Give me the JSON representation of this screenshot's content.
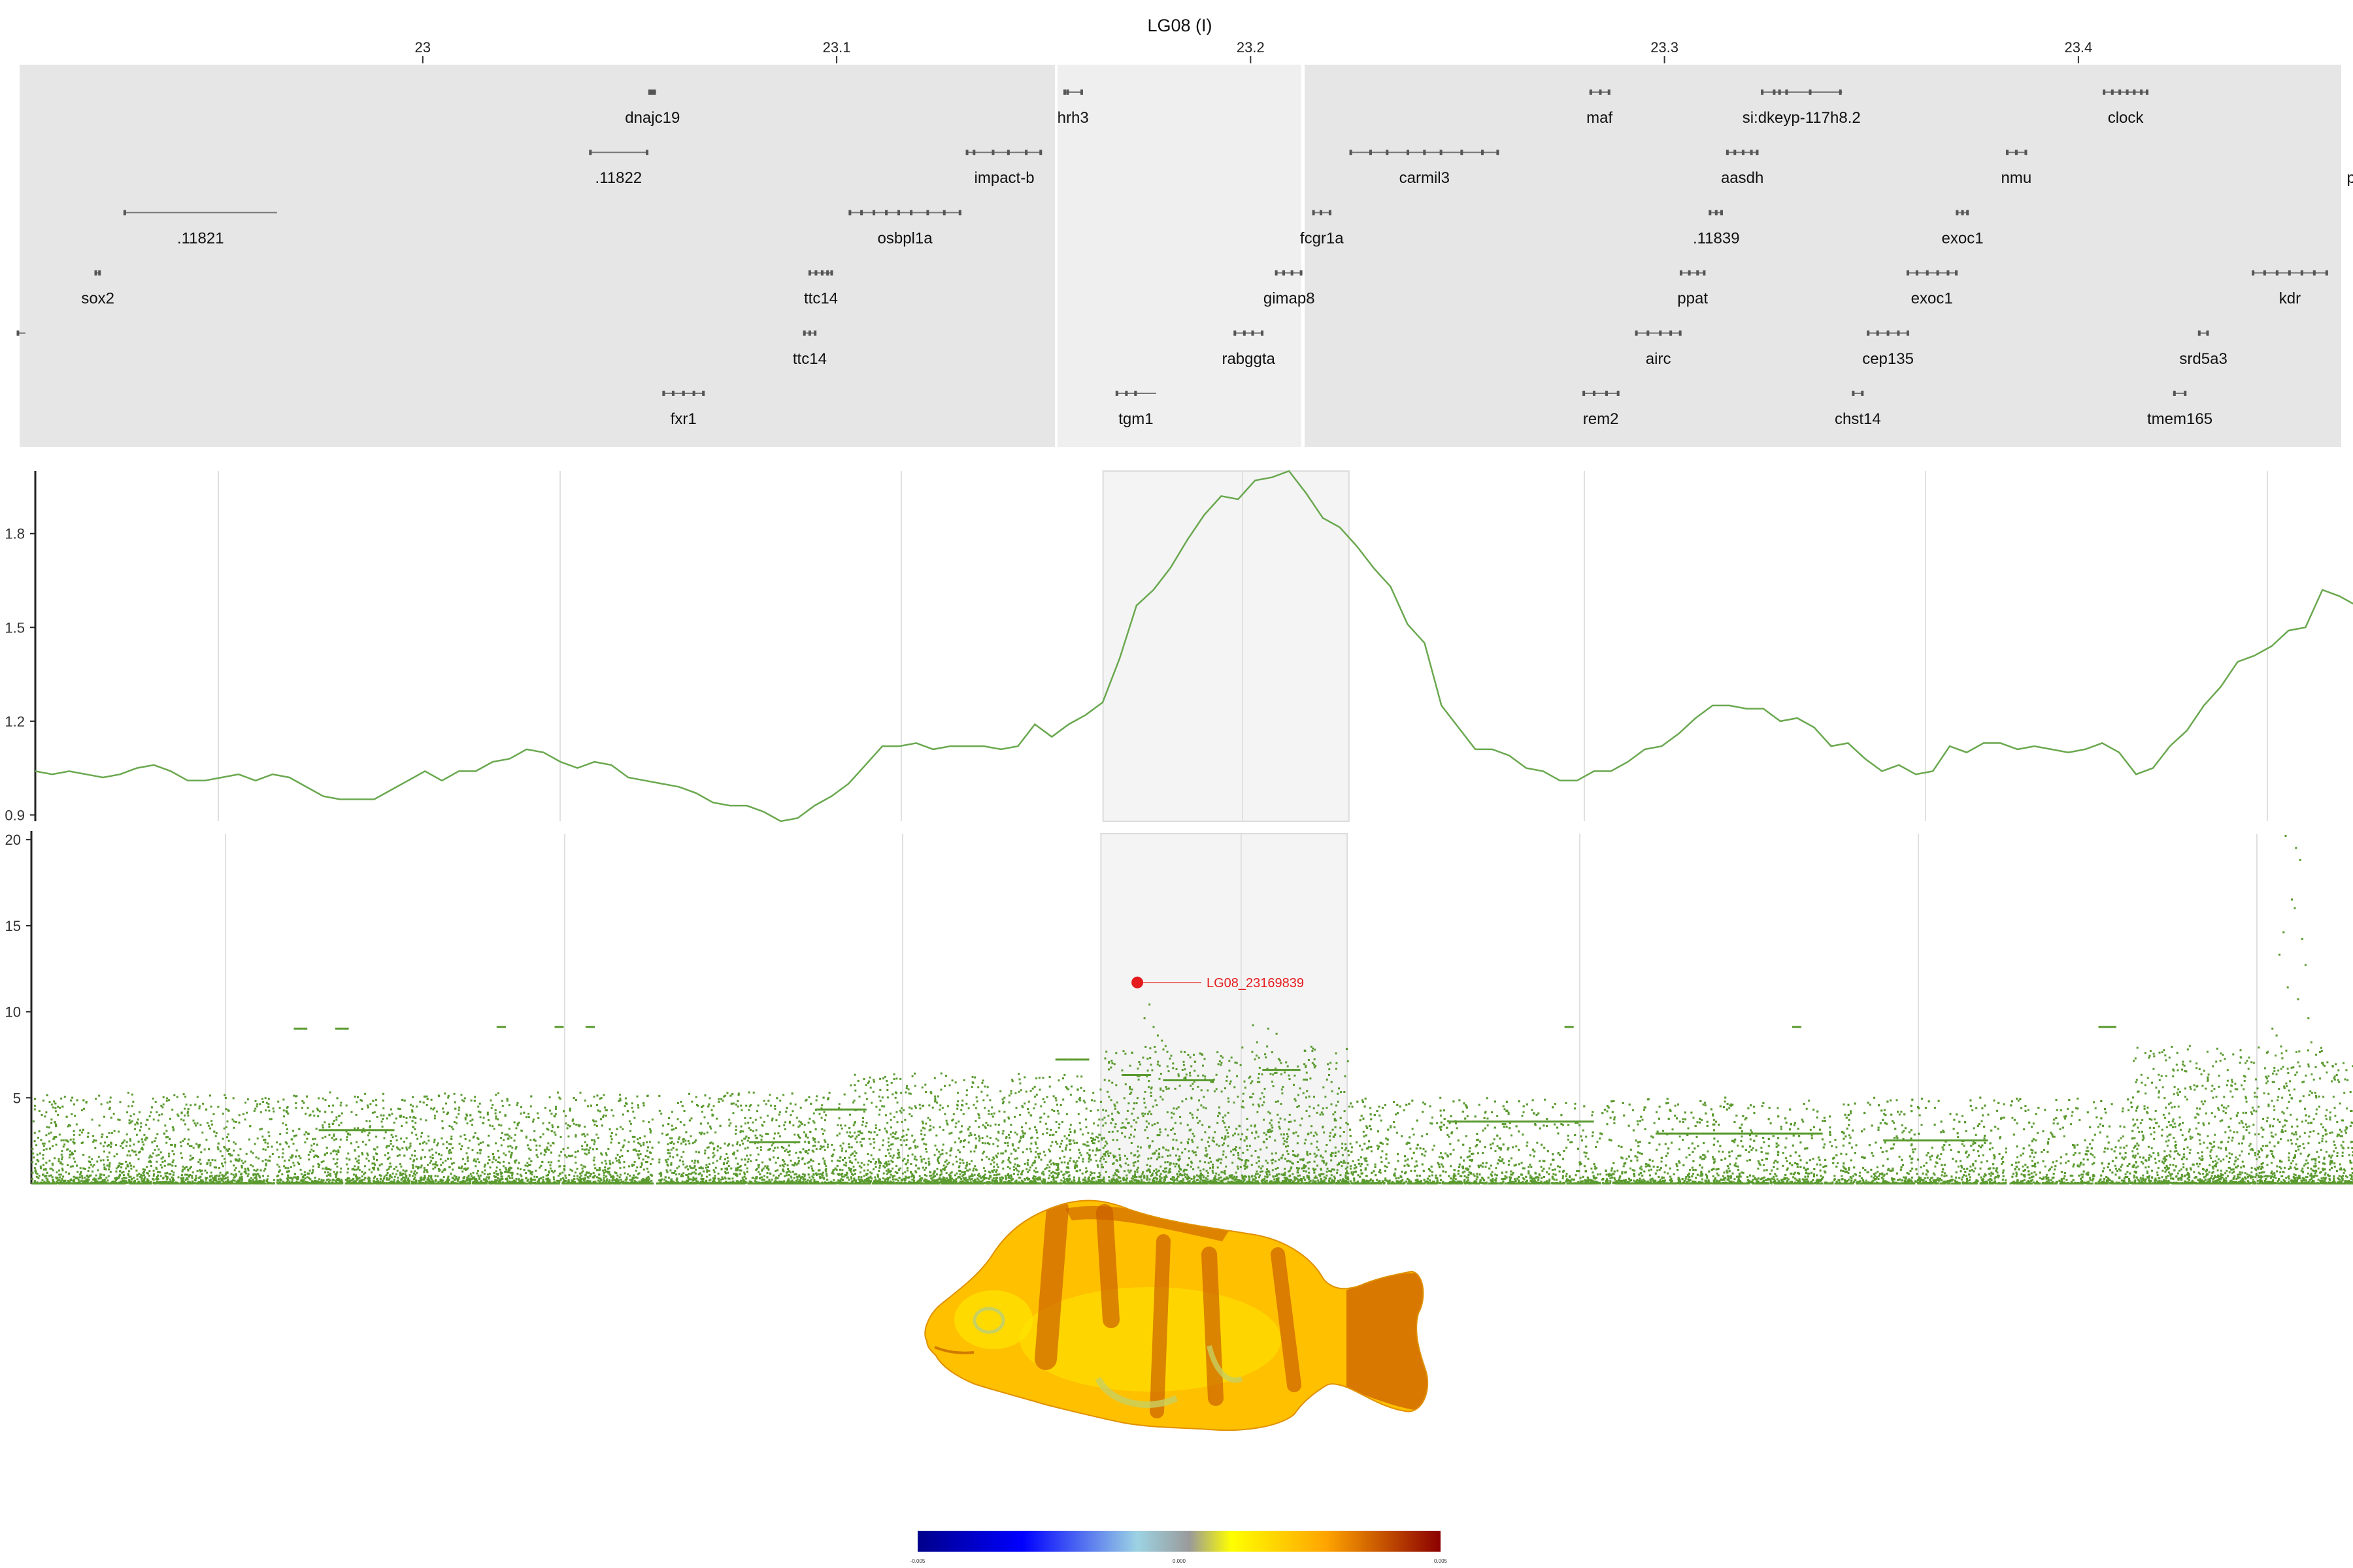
{
  "chart_data": [
    {
      "type": "gene-track",
      "title": "LG08 (I)",
      "x_ticks": [
        23,
        23.1,
        23.2,
        23.3,
        23.4
      ],
      "xlim": [
        22.9026,
        23.4635
      ],
      "highlight_range": [
        23.161,
        23.2205
      ],
      "genes": [
        {
          "name": "dnajc19",
          "row": 0,
          "start": 23.0546,
          "end": 23.0564,
          "label_at": 23.0555,
          "exons": [
            23.0548,
            23.0552,
            23.0556,
            23.056
          ]
        },
        {
          "name": "hrh3",
          "row": 0,
          "start": 23.1549,
          "end": 23.1593,
          "label_at": 23.1571,
          "exons": [
            23.1551,
            23.1558,
            23.1592
          ]
        },
        {
          "name": "maf",
          "row": 0,
          "start": 23.2818,
          "end": 23.2868,
          "label_at": 23.2843,
          "exons": [
            23.2822,
            23.2845,
            23.2866
          ]
        },
        {
          "name": "si:dkeyp-117h8.2",
          "row": 0,
          "start": 23.3234,
          "end": 23.3429,
          "label_at": 23.3331,
          "exons": [
            23.3236,
            23.3265,
            23.3278,
            23.3295,
            23.3352,
            23.3425
          ]
        },
        {
          "name": "clock",
          "row": 0,
          "start": 23.4059,
          "end": 23.4169,
          "label_at": 23.4114,
          "exons": [
            23.4062,
            23.4082,
            23.41,
            23.4118,
            23.4135,
            23.4152,
            23.4166
          ]
        },
        {
          "name": ".11822",
          "row": 1,
          "start": 23.0403,
          "end": 23.0544,
          "label_at": 23.0473,
          "exons": [
            23.0405,
            23.0542
          ]
        },
        {
          "name": "impact-b",
          "row": 1,
          "start": 23.1313,
          "end": 23.1496,
          "label_at": 23.1405,
          "exons": [
            23.1315,
            23.1332,
            23.1378,
            23.1415,
            23.1458,
            23.1493
          ]
        },
        {
          "name": "carmil3",
          "row": 1,
          "start": 23.224,
          "end": 23.26,
          "label_at": 23.242,
          "exons": [
            23.2242,
            23.229,
            23.233,
            23.238,
            23.242,
            23.246,
            23.251,
            23.256,
            23.2597
          ]
        },
        {
          "name": "aasdh",
          "row": 1,
          "start": 23.315,
          "end": 23.3226,
          "label_at": 23.3188,
          "exons": [
            23.3152,
            23.317,
            23.319,
            23.321,
            23.3224
          ]
        },
        {
          "name": "nmu",
          "row": 1,
          "start": 23.3826,
          "end": 23.3875,
          "label_at": 23.385,
          "exons": [
            23.3828,
            23.385,
            23.3873
          ]
        },
        {
          "name": "pdg",
          "row": 1,
          "start": 23.47,
          "end": 23.48,
          "label_at": 23.468,
          "exons": []
        },
        {
          "name": ".11821",
          "row": 2,
          "start": 22.9278,
          "end": 22.9648,
          "label_at": 22.9463,
          "exons": [
            22.928
          ]
        },
        {
          "name": "osbpl1a",
          "row": 2,
          "start": 23.103,
          "end": 23.13,
          "label_at": 23.1165,
          "exons": [
            23.1032,
            23.106,
            23.109,
            23.112,
            23.115,
            23.118,
            23.122,
            23.126,
            23.1298
          ]
        },
        {
          "name": "fcgr1a",
          "row": 2,
          "start": 23.215,
          "end": 23.2195,
          "label_at": 23.2172,
          "exons": [
            23.2152,
            23.217,
            23.2192
          ]
        },
        {
          "name": ".11839",
          "row": 2,
          "start": 23.3109,
          "end": 23.314,
          "label_at": 23.3125,
          "exons": [
            23.311,
            23.3125,
            23.3138
          ]
        },
        {
          "name": "exoc1",
          "row": 2,
          "start": 23.3705,
          "end": 23.3734,
          "label_at": 23.372,
          "exons": [
            23.3707,
            23.372,
            23.3732
          ]
        },
        {
          "name": "sox2",
          "row": 3,
          "start": 22.9208,
          "end": 22.9221,
          "label_at": 22.9215,
          "exons": [
            22.921,
            22.9219
          ]
        },
        {
          "name": "ttc14",
          "row": 3,
          "start": 23.0933,
          "end": 23.099,
          "label_at": 23.0962,
          "exons": [
            23.0935,
            23.095,
            23.0965,
            23.0978,
            23.0988
          ]
        },
        {
          "name": "gimap8",
          "row": 3,
          "start": 23.206,
          "end": 23.2125,
          "label_at": 23.2093,
          "exons": [
            23.2062,
            23.208,
            23.21,
            23.2122
          ]
        },
        {
          "name": "ppat",
          "row": 3,
          "start": 23.3038,
          "end": 23.3098,
          "label_at": 23.3068,
          "exons": [
            23.304,
            23.306,
            23.308,
            23.3096
          ]
        },
        {
          "name": "exoc1",
          "row": 3,
          "start": 23.3586,
          "end": 23.3707,
          "label_at": 23.3646,
          "exons": [
            23.3588,
            23.361,
            23.3635,
            23.366,
            23.3685,
            23.3705
          ]
        },
        {
          "name": "kdr",
          "row": 3,
          "start": 23.442,
          "end": 23.4603,
          "label_at": 23.4511,
          "exons": [
            23.4422,
            23.445,
            23.448,
            23.451,
            23.454,
            23.457,
            23.46
          ]
        },
        {
          "name": "",
          "row": 4,
          "start": 22.902,
          "end": 22.904,
          "label_at": 22.903,
          "exons": [
            22.9022
          ]
        },
        {
          "name": "ttc14",
          "row": 4,
          "start": 23.092,
          "end": 23.095,
          "label_at": 23.0935,
          "exons": [
            23.0922,
            23.0935,
            23.0948
          ]
        },
        {
          "name": "rabggta",
          "row": 4,
          "start": 23.196,
          "end": 23.203,
          "label_at": 23.1995,
          "exons": [
            23.1962,
            23.1985,
            23.2005,
            23.2028
          ]
        },
        {
          "name": "airc",
          "row": 4,
          "start": 23.293,
          "end": 23.304,
          "label_at": 23.2985,
          "exons": [
            23.2932,
            23.296,
            23.299,
            23.3015,
            23.3038
          ]
        },
        {
          "name": "cep135",
          "row": 4,
          "start": 23.349,
          "end": 23.359,
          "label_at": 23.354,
          "exons": [
            23.3492,
            23.3515,
            23.354,
            23.3565,
            23.3588
          ]
        },
        {
          "name": "srd5a3",
          "row": 4,
          "start": 23.429,
          "end": 23.4314,
          "label_at": 23.4302,
          "exons": [
            23.4292,
            23.4312
          ]
        },
        {
          "name": "fxr1",
          "row": 5,
          "start": 23.058,
          "end": 23.068,
          "label_at": 23.063,
          "exons": [
            23.0582,
            23.0605,
            23.063,
            23.0655,
            23.0678
          ]
        },
        {
          "name": "tgm1",
          "row": 5,
          "start": 23.1675,
          "end": 23.1772,
          "label_at": 23.1723,
          "exons": [
            23.1677,
            23.17,
            23.1722
          ]
        },
        {
          "name": "rem2",
          "row": 5,
          "start": 23.2803,
          "end": 23.289,
          "label_at": 23.2846,
          "exons": [
            23.2805,
            23.283,
            23.286,
            23.2888
          ]
        },
        {
          "name": "chst14",
          "row": 5,
          "start": 23.3454,
          "end": 23.348,
          "label_at": 23.3467,
          "exons": [
            23.3456,
            23.3478
          ]
        },
        {
          "name": "tmem165",
          "row": 5,
          "start": 23.423,
          "end": 23.426,
          "label_at": 23.4245,
          "exons": [
            23.4232,
            23.4258
          ]
        }
      ]
    },
    {
      "type": "line",
      "x_start": 22.9026,
      "x_step": 0.0041,
      "yticks": [
        0.9,
        1.2,
        1.5,
        1.8
      ],
      "ylim": [
        0.88,
        2.0
      ],
      "color": "#6aa84f",
      "highlight_range": [
        23.161,
        23.2205
      ],
      "y": [
        1.04,
        1.03,
        1.04,
        1.03,
        1.02,
        1.03,
        1.05,
        1.06,
        1.04,
        1.01,
        1.01,
        1.02,
        1.03,
        1.01,
        1.03,
        1.02,
        0.99,
        0.96,
        0.95,
        0.95,
        0.95,
        0.98,
        1.01,
        1.04,
        1.01,
        1.04,
        1.04,
        1.07,
        1.08,
        1.11,
        1.1,
        1.07,
        1.05,
        1.07,
        1.06,
        1.02,
        1.01,
        1.0,
        0.99,
        0.97,
        0.94,
        0.93,
        0.93,
        0.91,
        0.88,
        0.89,
        0.93,
        0.96,
        1.0,
        1.06,
        1.12,
        1.12,
        1.13,
        1.11,
        1.12,
        1.12,
        1.12,
        1.11,
        1.12,
        1.19,
        1.15,
        1.19,
        1.22,
        1.26,
        1.4,
        1.57,
        1.62,
        1.69,
        1.78,
        1.86,
        1.92,
        1.91,
        1.97,
        1.98,
        2.0,
        1.93,
        1.85,
        1.82,
        1.76,
        1.69,
        1.63,
        1.51,
        1.45,
        1.25,
        1.18,
        1.11,
        1.11,
        1.09,
        1.05,
        1.04,
        1.01,
        1.01,
        1.04,
        1.04,
        1.07,
        1.11,
        1.12,
        1.16,
        1.21,
        1.25,
        1.25,
        1.24,
        1.24,
        1.2,
        1.21,
        1.18,
        1.12,
        1.13,
        1.08,
        1.04,
        1.06,
        1.03,
        1.04,
        1.12,
        1.1,
        1.13,
        1.13,
        1.11,
        1.12,
        1.11,
        1.1,
        1.11,
        1.13,
        1.1,
        1.03,
        1.05,
        1.12,
        1.17,
        1.25,
        1.31,
        1.39,
        1.41,
        1.44,
        1.49,
        1.5,
        1.62,
        1.6,
        1.57,
        1.73,
        1.74,
        1.75,
        1.71,
        1.69,
        1.71,
        1.69,
        1.61,
        1.45
      ]
    },
    {
      "type": "scatter",
      "description_ref": "manhattan",
      "yticks": [
        5,
        10,
        15,
        20
      ],
      "ylim": [
        0,
        20.5
      ],
      "color": "#5a9a2f",
      "highlight_range": [
        23.161,
        23.2205
      ],
      "top_snp": {
        "label": "LG08_23169839",
        "x": 23.1698,
        "y": 11.7,
        "color": "#e41a1c"
      },
      "top_region_points": [
        {
          "x": 23.447,
          "y": 20.2
        },
        {
          "x": 23.4495,
          "y": 19.5
        },
        {
          "x": 23.4505,
          "y": 18.8
        },
        {
          "x": 23.4485,
          "y": 16.5
        },
        {
          "x": 23.4492,
          "y": 16.0
        },
        {
          "x": 23.4465,
          "y": 14.6
        },
        {
          "x": 23.451,
          "y": 14.2
        },
        {
          "x": 23.4455,
          "y": 13.3
        },
        {
          "x": 23.4518,
          "y": 12.7
        },
        {
          "x": 23.4475,
          "y": 11.4
        },
        {
          "x": 23.45,
          "y": 10.7
        },
        {
          "x": 23.4525,
          "y": 9.6
        },
        {
          "x": 23.4438,
          "y": 9.0
        },
        {
          "x": 23.4448,
          "y": 8.6
        },
        {
          "x": 23.4532,
          "y": 8.2
        },
        {
          "x": 23.4425,
          "y": 7.6
        },
        {
          "x": 23.1725,
          "y": 10.4
        },
        {
          "x": 23.1713,
          "y": 9.6
        },
        {
          "x": 23.1735,
          "y": 9.1
        },
        {
          "x": 23.1745,
          "y": 8.6
        },
        {
          "x": 23.1755,
          "y": 8.3
        },
        {
          "x": 23.1975,
          "y": 9.2
        },
        {
          "x": 23.2012,
          "y": 9.0
        },
        {
          "x": 23.2032,
          "y": 8.7
        },
        {
          "x": 23.1985,
          "y": 8.2
        }
      ],
      "flat_runs": [
        {
          "x0": 22.966,
          "x1": 22.969,
          "y": 9.0
        },
        {
          "x0": 22.976,
          "x1": 22.979,
          "y": 9.0
        },
        {
          "x0": 23.015,
          "x1": 23.017,
          "y": 9.1
        },
        {
          "x0": 23.029,
          "x1": 23.031,
          "y": 9.1
        },
        {
          "x0": 23.0365,
          "x1": 23.0385,
          "y": 9.1
        },
        {
          "x0": 23.273,
          "x1": 23.275,
          "y": 9.1
        },
        {
          "x0": 23.328,
          "x1": 23.33,
          "y": 9.1
        },
        {
          "x0": 23.402,
          "x1": 23.406,
          "y": 9.1
        },
        {
          "x0": 23.15,
          "x1": 23.158,
          "y": 7.2
        },
        {
          "x0": 23.2,
          "x1": 23.209,
          "y": 6.6
        },
        {
          "x0": 23.166,
          "x1": 23.173,
          "y": 6.3
        },
        {
          "x0": 23.176,
          "x1": 23.188,
          "y": 6.0
        },
        {
          "x0": 23.092,
          "x1": 23.104,
          "y": 4.3
        },
        {
          "x0": 23.245,
          "x1": 23.28,
          "y": 3.6
        },
        {
          "x0": 23.295,
          "x1": 23.335,
          "y": 2.9
        },
        {
          "x0": 23.35,
          "x1": 23.375,
          "y": 2.5
        },
        {
          "x0": 22.972,
          "x1": 22.99,
          "y": 3.1
        },
        {
          "x0": 23.076,
          "x1": 23.088,
          "y": 2.4
        }
      ],
      "density_profile": [
        {
          "x0": 22.9026,
          "x1": 23.1,
          "max": 5.3
        },
        {
          "x0": 23.1,
          "x1": 23.161,
          "max": 6.4
        },
        {
          "x0": 23.161,
          "x1": 23.2205,
          "max": 8.0
        },
        {
          "x0": 23.2205,
          "x1": 23.41,
          "max": 5.0
        },
        {
          "x0": 23.41,
          "x1": 23.4635,
          "max": 8.0
        }
      ]
    },
    {
      "type": "heatmap-image",
      "colorbar": {
        "min_label": "-0.005",
        "mid_label": "0.000",
        "max_label": "0.005",
        "stops": [
          "#00008b",
          "#0000ff",
          "#9cd3e3",
          "#9a9a9a",
          "#ffff00",
          "#ffa500",
          "#8b0000"
        ]
      },
      "palette": {
        "body": "#ffc000",
        "dark": "#c85a00",
        "yellow": "#ffe600",
        "green": "#c8d060"
      }
    }
  ]
}
